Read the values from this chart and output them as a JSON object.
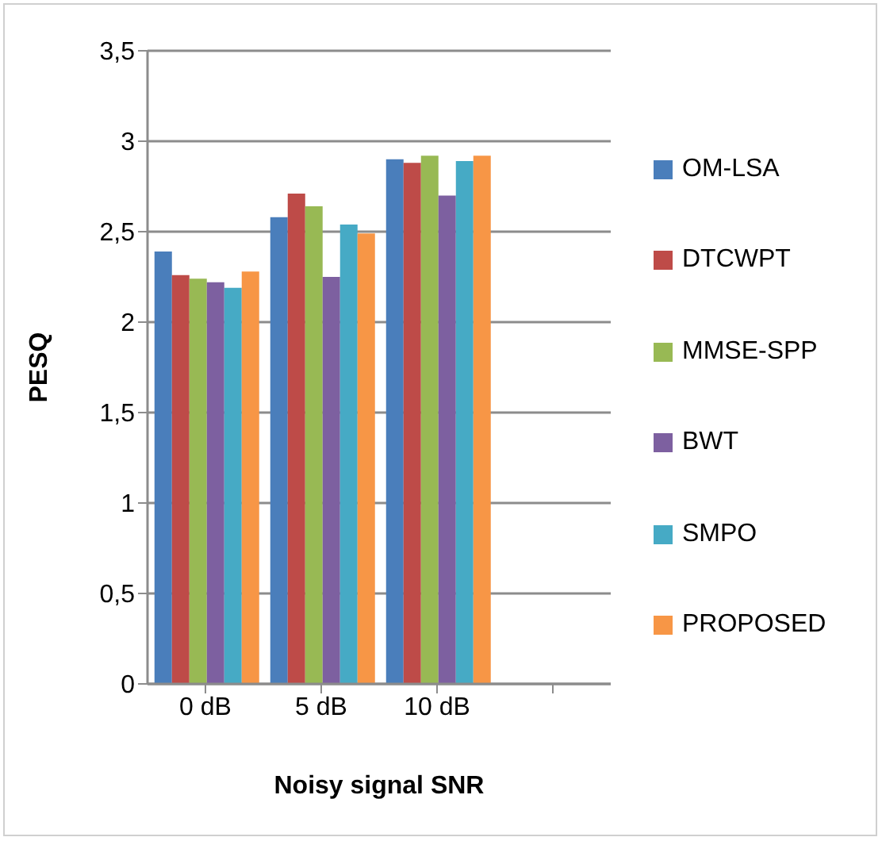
{
  "chart_data": {
    "type": "bar",
    "xlabel": "Noisy signal SNR",
    "ylabel": "PESQ",
    "categories": [
      "0 dB",
      "5 dB",
      "10 dB",
      null
    ],
    "series": [
      {
        "name": "OM-LSA",
        "color": "#4a7ebb",
        "values": [
          2.39,
          2.58,
          2.9,
          null
        ]
      },
      {
        "name": "DTCWPT",
        "color": "#be4b48",
        "values": [
          2.26,
          2.71,
          2.88,
          null
        ]
      },
      {
        "name": "MMSE-SPP",
        "color": "#98b954",
        "values": [
          2.24,
          2.64,
          2.92,
          null
        ]
      },
      {
        "name": "BWT",
        "color": "#7d60a0",
        "values": [
          2.22,
          2.25,
          2.7,
          null
        ]
      },
      {
        "name": "SMPO",
        "color": "#46aac5",
        "values": [
          2.19,
          2.54,
          2.89,
          null
        ]
      },
      {
        "name": "PROPOSED",
        "color": "#f79646",
        "values": [
          2.28,
          2.49,
          2.92,
          null
        ]
      }
    ],
    "ylim": [
      0,
      3.5
    ],
    "yticks": [
      0,
      {
        "value": 0.5,
        "label": "0,5"
      },
      1,
      {
        "value": 1.5,
        "label": "1,5"
      },
      2,
      {
        "value": 2.5,
        "label": "2,5"
      },
      3,
      {
        "value": 3.5,
        "label": "3,5"
      }
    ],
    "grid": "y",
    "legend": "right"
  }
}
